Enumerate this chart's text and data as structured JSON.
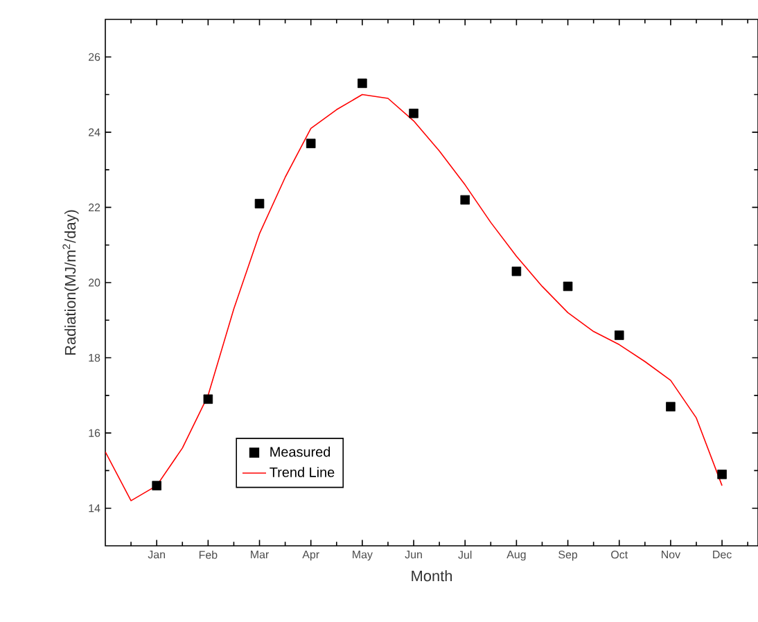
{
  "chart_data": {
    "type": "scatter",
    "xlabel": "Month",
    "ylabel": "Radiation(MJ/m$^{2}$/day)",
    "categories": [
      null,
      null,
      "Jan",
      null,
      "Feb",
      null,
      "Mar",
      null,
      "Apr",
      null,
      "May",
      null,
      "Jun",
      null,
      "Jul",
      null,
      "Aug",
      null,
      "Sep",
      null,
      "Oct",
      null,
      "Nov",
      null,
      "Dec",
      null
    ],
    "ylim": [
      13,
      27
    ],
    "yticks": [
      14,
      16,
      18,
      20,
      22,
      24,
      26
    ],
    "grid": false,
    "legend": "bottom left",
    "series": [
      {
        "name": "Measured",
        "color": "#000000",
        "marker": "square",
        "values": [
          null,
          null,
          14.6,
          null,
          16.9,
          null,
          22.1,
          null,
          23.7,
          null,
          25.3,
          null,
          24.5,
          null,
          22.2,
          null,
          20.3,
          null,
          19.9,
          null,
          18.6,
          null,
          16.7,
          null,
          14.9,
          null
        ]
      },
      {
        "name": "Trend Line",
        "type": "line",
        "color": "#ff0000",
        "line_style": "solid",
        "marker": "none",
        "values": [
          15.5,
          14.2,
          14.6,
          15.6,
          17.0,
          19.3,
          21.3,
          22.8,
          24.1,
          24.6,
          25.0,
          24.9,
          24.3,
          23.5,
          22.6,
          21.6,
          20.7,
          19.9,
          19.2,
          18.7,
          18.35,
          17.9,
          17.4,
          16.4,
          14.6,
          null
        ]
      }
    ]
  }
}
